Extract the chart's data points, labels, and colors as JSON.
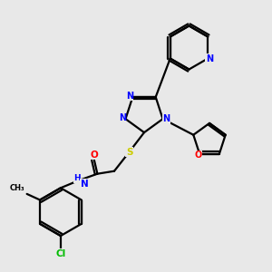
{
  "background_color": "#e8e8e8",
  "atom_colors": {
    "N": "#0000ff",
    "O": "#ff0000",
    "S": "#cccc00",
    "Cl": "#00bb00",
    "C": "#000000",
    "H": "#000000"
  },
  "line_color": "#000000",
  "line_width": 1.6,
  "xlim": [
    0,
    10
  ],
  "ylim": [
    0,
    10
  ]
}
